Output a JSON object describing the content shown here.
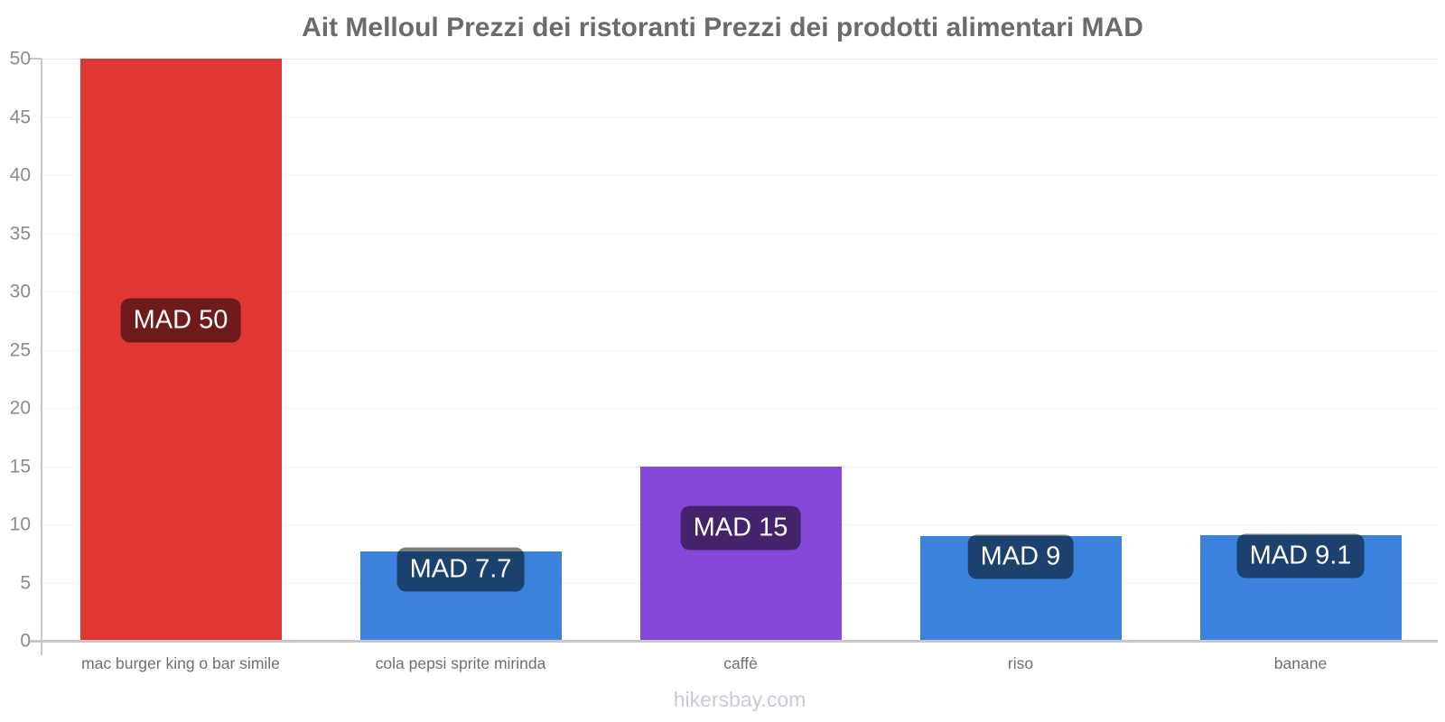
{
  "chart_data": {
    "type": "bar",
    "title": "Ait Melloul Prezzi dei ristoranti Prezzi dei prodotti alimentari MAD",
    "categories": [
      "mac burger king o bar simile",
      "cola pepsi sprite mirinda",
      "caffè",
      "riso",
      "banane"
    ],
    "values": [
      50,
      7.7,
      15,
      9,
      9.1
    ],
    "bar_labels": [
      "MAD 50",
      "MAD 7.7",
      "MAD 15",
      "MAD 9",
      "MAD 9.1"
    ],
    "bar_colors": [
      "#e13737",
      "#3a82dd",
      "#8648d8",
      "#3a82dd",
      "#3a82dd"
    ],
    "xlabel": "",
    "ylabel": "",
    "ylim": [
      0,
      50
    ],
    "ytick_step": 5,
    "ytick_labels": [
      "0",
      "5",
      "10",
      "15",
      "20",
      "25",
      "30",
      "35",
      "40",
      "45",
      "50"
    ],
    "grid": true,
    "legend_position": "none",
    "currency": "MAD",
    "value_badge": {
      "background": "rgba(0,0,0,0.5)",
      "text_color": "#ffffff"
    }
  },
  "watermark": "hikersbay.com",
  "colors": {
    "background": "#ffffff",
    "title_text": "#6b6b6b",
    "ytick_text": "#8b8b8b",
    "xtick_text": "#6f6f6f",
    "axis_line": "#c9c6ca",
    "gridline": "#f5f3f7",
    "top_gridline": "#eceaef",
    "tick_mark": "#c8c8c8",
    "watermark_text": "#cec8d3"
  }
}
